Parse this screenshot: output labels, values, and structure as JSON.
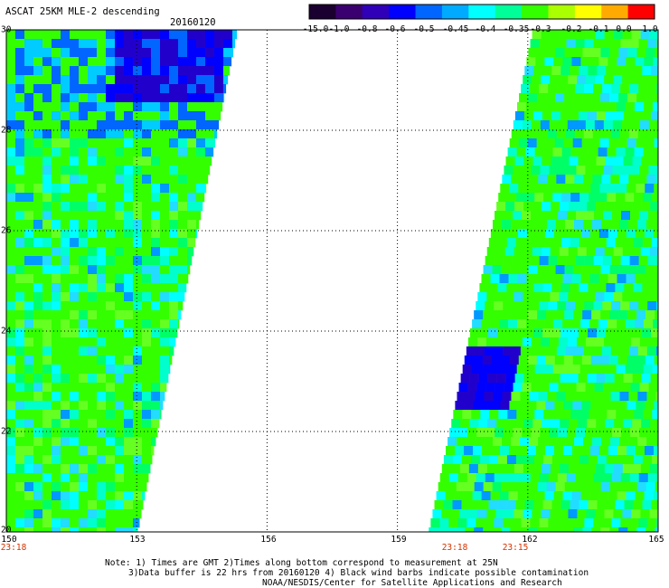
{
  "header": {
    "title": "ASCAT 25KM MLE-2 descending",
    "date": "20160120"
  },
  "colorbar": {
    "labels": [
      "-15.0",
      "-1.0",
      "-0.8",
      "-0.6",
      "-0.5",
      "-0.45",
      "-0.4",
      "-0.35",
      "-0.3",
      "-0.2",
      "-0.1",
      "0.0",
      "1.0"
    ],
    "colors": [
      "#1a0030",
      "#3a0070",
      "#3000b8",
      "#0000ff",
      "#0066ff",
      "#00aaff",
      "#00ffff",
      "#00ff99",
      "#33ff00",
      "#aaff00",
      "#ffff00",
      "#ffaa00",
      "#ff0000"
    ]
  },
  "map": {
    "lat_labels": [
      "30",
      "28",
      "26",
      "24",
      "22",
      "20"
    ],
    "lon_labels": [
      "150",
      "153",
      "156",
      "159",
      "162",
      "165"
    ],
    "time_labels": [
      "23:18",
      "23:18",
      "23:15"
    ],
    "lat_range": [
      20,
      30
    ],
    "lon_range": [
      150,
      165
    ],
    "swaths": [
      {
        "side": "west",
        "edge_top_lon": 155.3,
        "edge_bottom_lon": 153.0
      },
      {
        "side": "east",
        "edge_top_lon": 162.1,
        "edge_bottom_lon": 159.7
      }
    ]
  },
  "notes": {
    "line1": "Note: 1) Times are GMT 2)Times along bottom correspond to measurement at 25N",
    "line2": "3)Data buffer is 22 hrs from 20160120 4) Black wind barbs indicate possible contamination",
    "line3": "NOAA/NESDIS/Center for Satellite Applications and Research"
  }
}
